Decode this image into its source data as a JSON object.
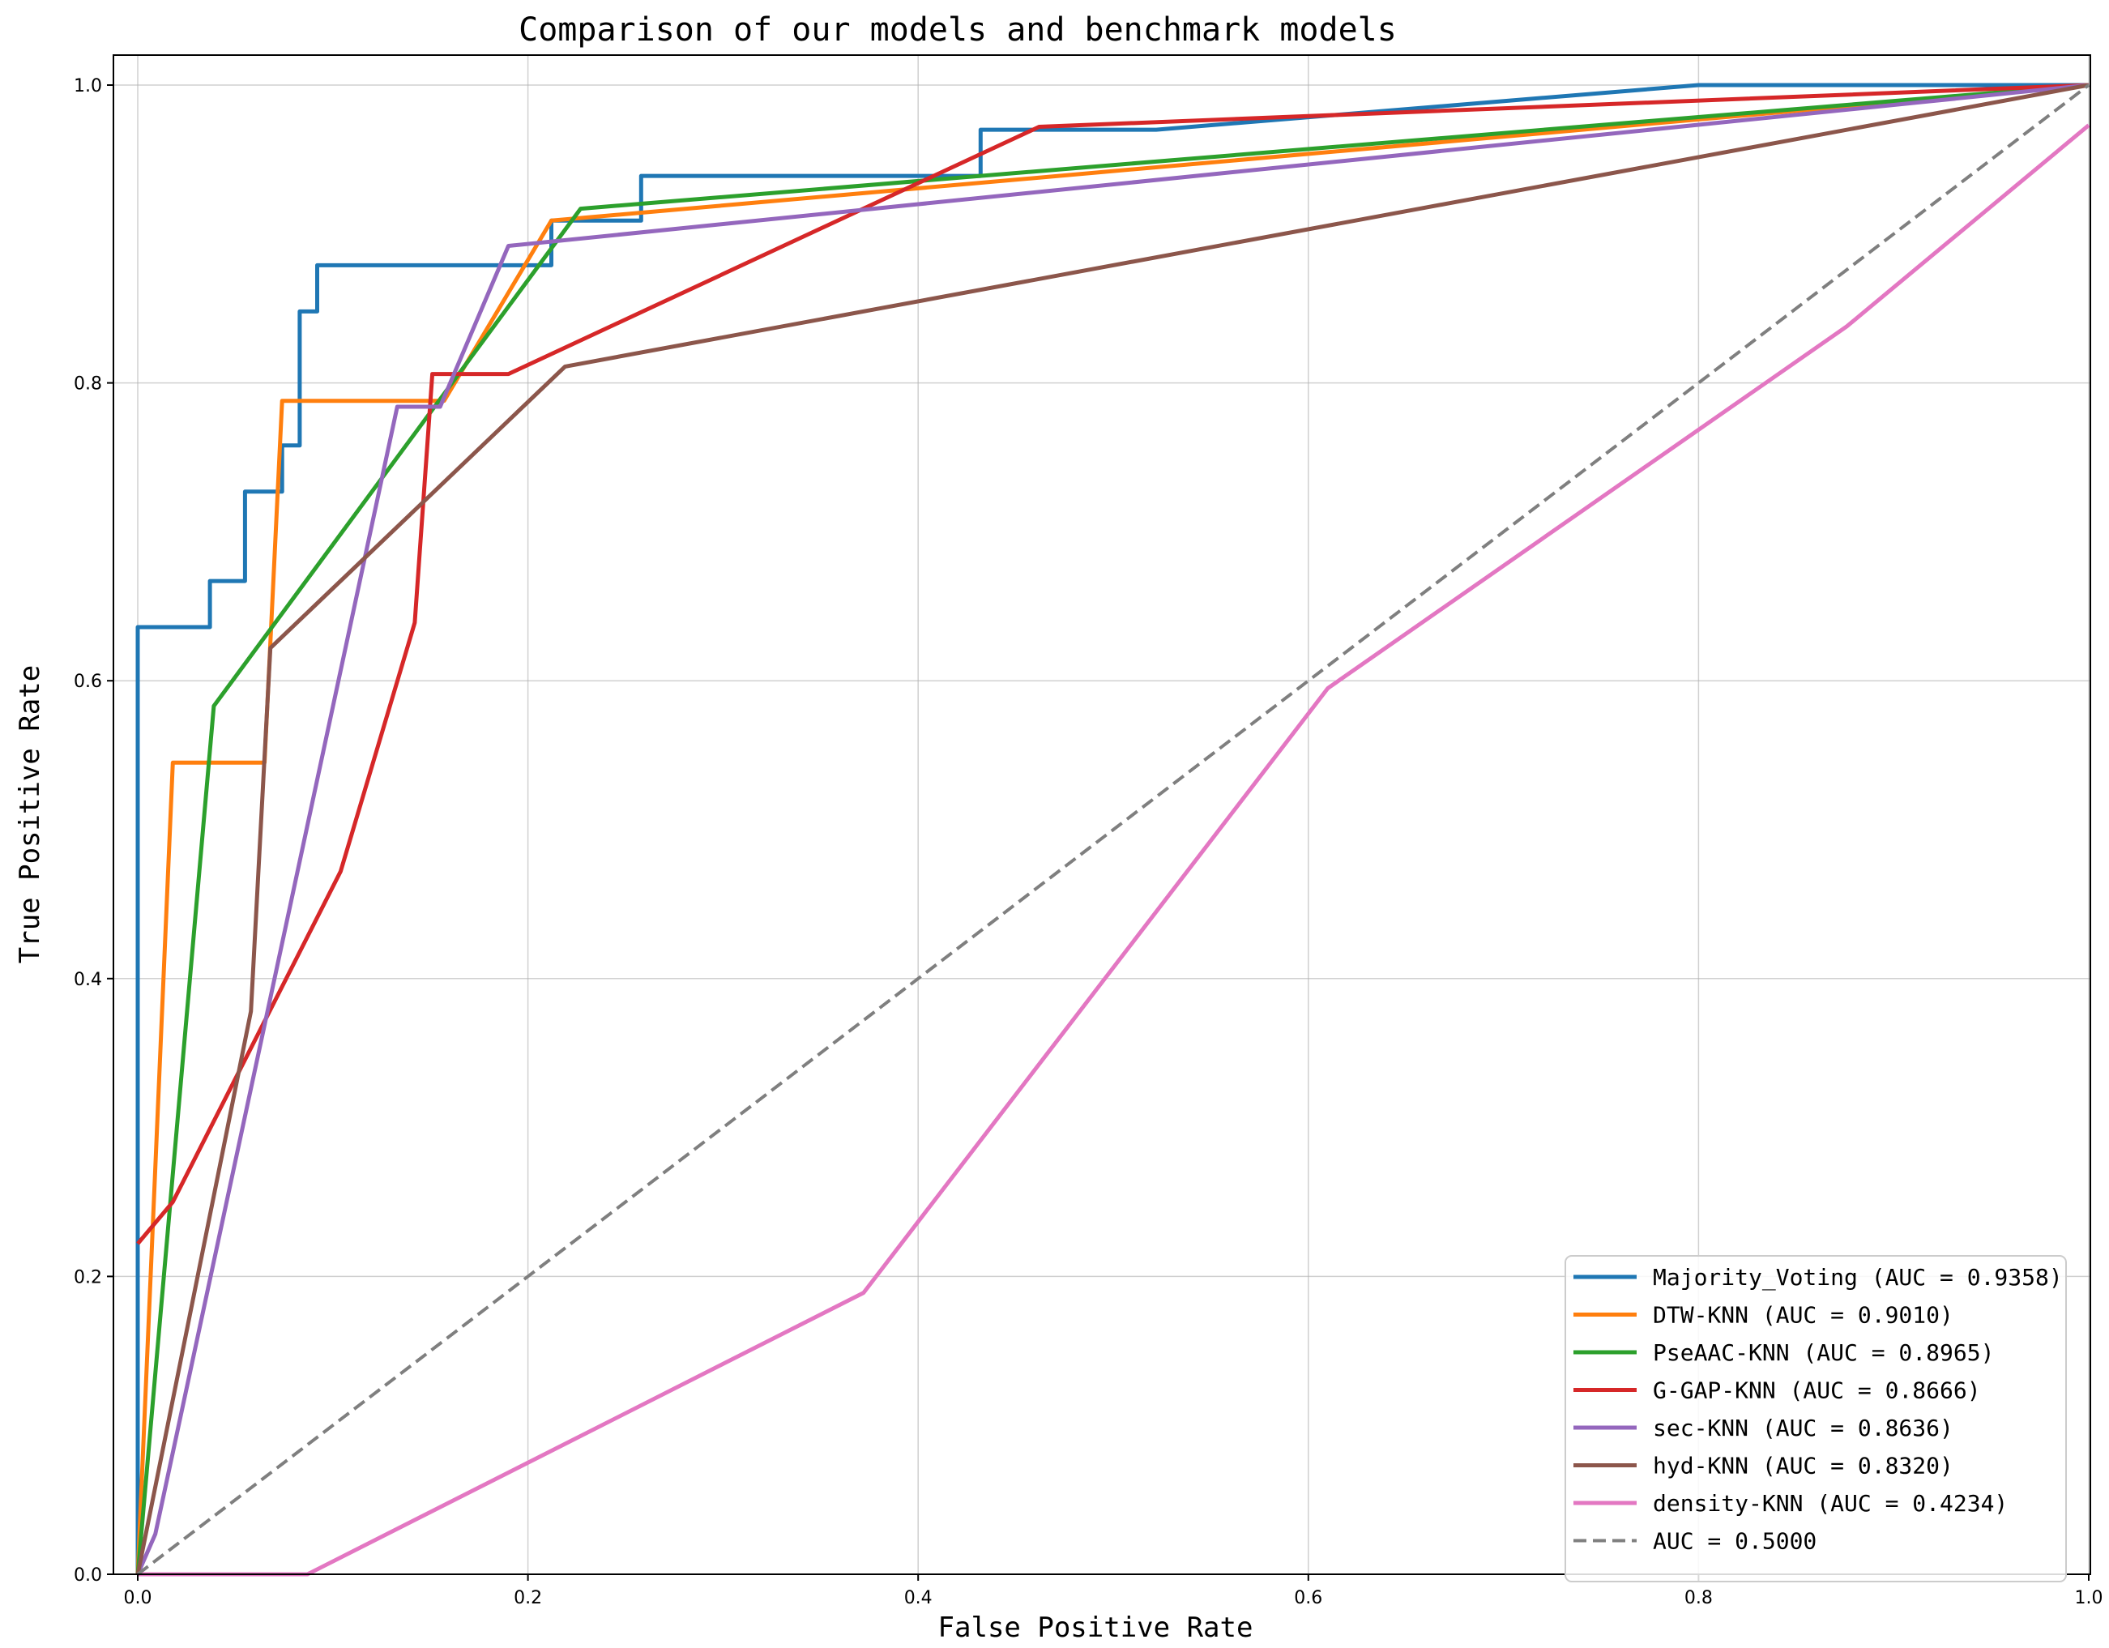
{
  "chart_data": {
    "type": "line",
    "title": "Comparison of our models and benchmark models",
    "xlabel": "False Positive Rate",
    "ylabel": "True Positive Rate",
    "xlim": [
      0.0,
      1.0
    ],
    "ylim": [
      0.0,
      1.0
    ],
    "xticks": [
      "0.0",
      "0.2",
      "0.4",
      "0.6",
      "0.8",
      "1.0"
    ],
    "yticks": [
      "0.0",
      "0.2",
      "0.4",
      "0.6",
      "0.8",
      "1.0"
    ],
    "grid": true,
    "legend_position": "lower-right",
    "series": [
      {
        "name": "Majority_Voting (AUC = 0.9358)",
        "color": "#1f77b4",
        "dashed": false,
        "points": [
          [
            0.0,
            0.0
          ],
          [
            0.0,
            0.636
          ],
          [
            0.037,
            0.636
          ],
          [
            0.037,
            0.667
          ],
          [
            0.055,
            0.667
          ],
          [
            0.055,
            0.727
          ],
          [
            0.074,
            0.727
          ],
          [
            0.074,
            0.758
          ],
          [
            0.083,
            0.758
          ],
          [
            0.083,
            0.848
          ],
          [
            0.092,
            0.848
          ],
          [
            0.092,
            0.879
          ],
          [
            0.212,
            0.879
          ],
          [
            0.212,
            0.909
          ],
          [
            0.258,
            0.909
          ],
          [
            0.258,
            0.939
          ],
          [
            0.432,
            0.939
          ],
          [
            0.432,
            0.97
          ],
          [
            0.522,
            0.97
          ],
          [
            0.8,
            1.0
          ],
          [
            1.0,
            1.0
          ]
        ]
      },
      {
        "name": "DTW-KNN (AUC = 0.9010)",
        "color": "#ff7f0e",
        "dashed": false,
        "points": [
          [
            0.0,
            0.0
          ],
          [
            0.018,
            0.545
          ],
          [
            0.065,
            0.545
          ],
          [
            0.074,
            0.788
          ],
          [
            0.157,
            0.788
          ],
          [
            0.212,
            0.909
          ],
          [
            1.0,
            1.0
          ]
        ]
      },
      {
        "name": "PseAAC-KNN (AUC = 0.8965)",
        "color": "#2ca02c",
        "dashed": false,
        "points": [
          [
            0.0,
            0.0
          ],
          [
            0.039,
            0.583
          ],
          [
            0.227,
            0.917
          ],
          [
            1.0,
            1.0
          ]
        ]
      },
      {
        "name": "G-GAP-KNN (AUC = 0.8666)",
        "color": "#d62728",
        "dashed": false,
        "points": [
          [
            0.0,
            0.222
          ],
          [
            0.018,
            0.25
          ],
          [
            0.104,
            0.472
          ],
          [
            0.142,
            0.639
          ],
          [
            0.151,
            0.806
          ],
          [
            0.19,
            0.806
          ],
          [
            0.462,
            0.972
          ],
          [
            1.0,
            1.0
          ]
        ]
      },
      {
        "name": "sec-KNN (AUC = 0.8636)",
        "color": "#9467bd",
        "dashed": false,
        "points": [
          [
            0.0,
            0.0
          ],
          [
            0.009,
            0.027
          ],
          [
            0.133,
            0.784
          ],
          [
            0.155,
            0.784
          ],
          [
            0.19,
            0.892
          ],
          [
            1.0,
            1.0
          ]
        ]
      },
      {
        "name": "hyd-KNN (AUC = 0.8320)",
        "color": "#8c564b",
        "dashed": false,
        "points": [
          [
            0.0,
            0.0
          ],
          [
            0.058,
            0.378
          ],
          [
            0.068,
            0.622
          ],
          [
            0.219,
            0.811
          ],
          [
            1.0,
            1.0
          ]
        ]
      },
      {
        "name": "density-KNN (AUC = 0.4234)",
        "color": "#e377c2",
        "dashed": false,
        "points": [
          [
            0.0,
            0.0
          ],
          [
            0.087,
            0.0
          ],
          [
            0.372,
            0.189
          ],
          [
            0.61,
            0.595
          ],
          [
            0.876,
            0.838
          ],
          [
            1.0,
            0.973
          ]
        ]
      },
      {
        "name": "AUC = 0.5000",
        "color": "#7f7f7f",
        "dashed": true,
        "points": [
          [
            0.0,
            0.0
          ],
          [
            1.0,
            1.0
          ]
        ]
      }
    ]
  }
}
